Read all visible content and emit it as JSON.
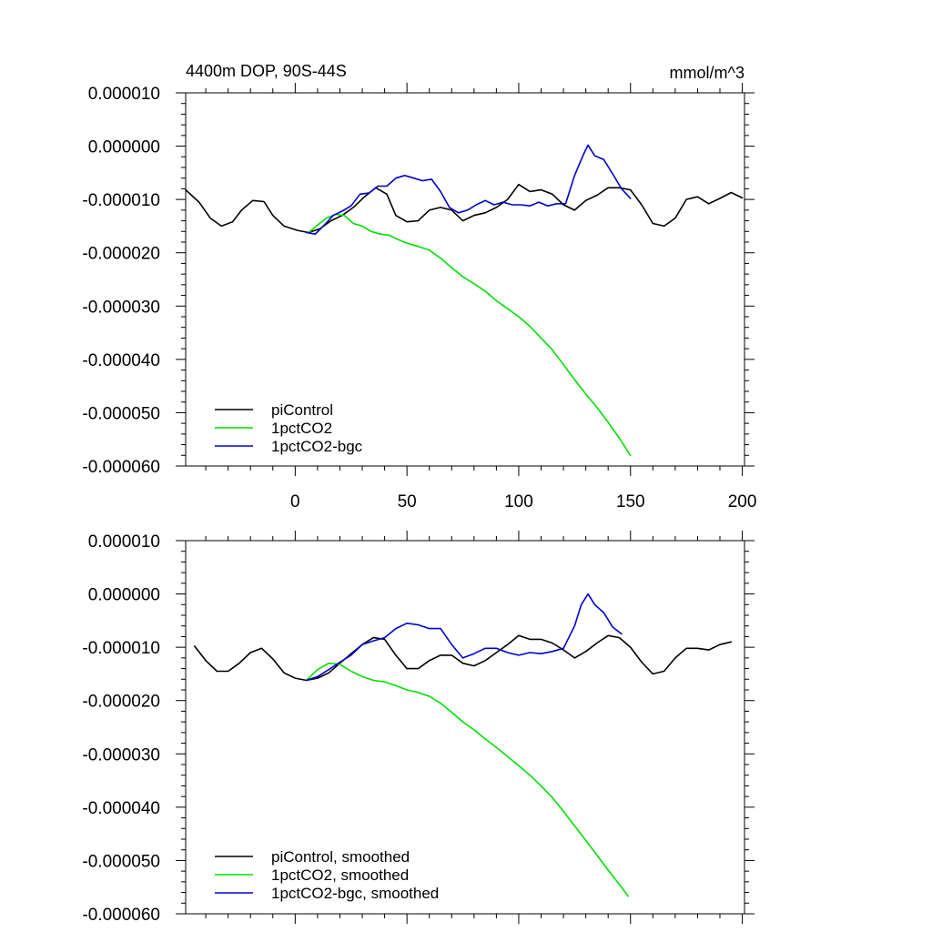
{
  "chart_data": [
    {
      "type": "line",
      "title": "4400m DOP, 90S-44S",
      "units_label": "mmol/m^3",
      "xlim": [
        -49,
        201
      ],
      "ylim": [
        -6e-05,
        1e-05
      ],
      "x_ticks": [
        0,
        50,
        100,
        150,
        200
      ],
      "x_tick_labels": [
        "0",
        "50",
        "100",
        "150",
        "200"
      ],
      "y_ticks": [
        1e-05,
        0,
        -1e-05,
        -2e-05,
        -3e-05,
        -4e-05,
        -5e-05,
        -6e-05
      ],
      "y_tick_labels": [
        "0.000010",
        "0.000000",
        "-0.000010",
        "-0.000020",
        "-0.000030",
        "-0.000040",
        "-0.000050",
        "-0.000060"
      ],
      "grid": false,
      "legend_position": "bottom-left",
      "series": [
        {
          "name": "piControl",
          "color": "#000000",
          "x": [
            -49,
            -43,
            -38,
            -33,
            -28,
            -24,
            -19,
            -14,
            -10,
            -5,
            1,
            6,
            11,
            16,
            21,
            26,
            31,
            36,
            41,
            45,
            50,
            55,
            60,
            65,
            70,
            75,
            80,
            85,
            90,
            95,
            100,
            105,
            110,
            115,
            120,
            125,
            130,
            135,
            140,
            145,
            150,
            155,
            160,
            165,
            170,
            175,
            180,
            185,
            190,
            195,
            200
          ],
          "y": [
            -8.2e-06,
            -1.05e-05,
            -1.35e-05,
            -1.5e-05,
            -1.42e-05,
            -1.2e-05,
            -1.02e-05,
            -1.04e-05,
            -1.3e-05,
            -1.5e-05,
            -1.58e-05,
            -1.62e-05,
            -1.55e-05,
            -1.4e-05,
            -1.3e-05,
            -1.15e-05,
            -9.5e-06,
            -7.8e-06,
            -9e-06,
            -1.3e-05,
            -1.42e-05,
            -1.4e-05,
            -1.2e-05,
            -1.15e-05,
            -1.2e-05,
            -1.4e-05,
            -1.3e-05,
            -1.25e-05,
            -1.15e-05,
            -1e-05,
            -7.2e-06,
            -8.5e-06,
            -8.2e-06,
            -9e-06,
            -1.1e-05,
            -1.2e-05,
            -1.02e-05,
            -9.2e-06,
            -7.8e-06,
            -7.8e-06,
            -8.2e-06,
            -1.1e-05,
            -1.45e-05,
            -1.5e-05,
            -1.35e-05,
            -1e-05,
            -9.5e-06,
            -1.08e-05,
            -9.8e-06,
            -8.7e-06,
            -9.7e-06
          ]
        },
        {
          "name": "1pctCO2",
          "color": "#00e000",
          "x": [
            6,
            10,
            14,
            18,
            22,
            26,
            30,
            34,
            38,
            42,
            46,
            50,
            55,
            60,
            65,
            70,
            75,
            80,
            85,
            90,
            95,
            100,
            105,
            110,
            115,
            120,
            125,
            130,
            135,
            140,
            145,
            150
          ],
          "y": [
            -1.62e-05,
            -1.48e-05,
            -1.35e-05,
            -1.28e-05,
            -1.3e-05,
            -1.45e-05,
            -1.5e-05,
            -1.6e-05,
            -1.65e-05,
            -1.67e-05,
            -1.75e-05,
            -1.82e-05,
            -1.88e-05,
            -1.95e-05,
            -2.1e-05,
            -2.28e-05,
            -2.45e-05,
            -2.58e-05,
            -2.72e-05,
            -2.9e-05,
            -3.05e-05,
            -3.2e-05,
            -3.38e-05,
            -3.6e-05,
            -3.82e-05,
            -4.1e-05,
            -4.38e-05,
            -4.65e-05,
            -4.9e-05,
            -5.18e-05,
            -5.48e-05,
            -5.8e-05
          ]
        },
        {
          "name": "1pctCO2-bgc",
          "color": "#0000cc",
          "x": [
            5,
            9,
            13,
            17,
            21,
            25,
            29,
            33,
            37,
            41,
            45,
            49,
            53,
            57,
            61,
            65,
            69,
            73,
            77,
            81,
            85,
            89,
            93,
            97,
            101,
            105,
            109,
            113,
            117,
            121,
            125,
            129,
            131,
            134,
            138,
            142,
            146,
            150
          ],
          "y": [
            -1.62e-05,
            -1.65e-05,
            -1.48e-05,
            -1.3e-05,
            -1.22e-05,
            -1.12e-05,
            -9e-06,
            -8.8e-06,
            -7.5e-06,
            -7.5e-06,
            -6e-06,
            -5.5e-06,
            -6e-06,
            -6.5e-06,
            -6.2e-06,
            -8.5e-06,
            -1.15e-05,
            -1.25e-05,
            -1.2e-05,
            -1.1e-05,
            -1.02e-05,
            -1.1e-05,
            -1.05e-05,
            -1.1e-05,
            -1.1e-05,
            -1.12e-05,
            -1.05e-05,
            -1.12e-05,
            -1.08e-05,
            -1.08e-05,
            -5.5e-06,
            -1.5e-06,
            2e-07,
            -1.8e-06,
            -2.5e-06,
            -5.2e-06,
            -8e-06,
            -9.8e-06
          ]
        }
      ]
    },
    {
      "type": "line",
      "title": "",
      "xlim": [
        -49,
        201
      ],
      "ylim": [
        -6e-05,
        1e-05
      ],
      "x_ticks": [
        0,
        50,
        100,
        150,
        200
      ],
      "y_ticks": [
        1e-05,
        0,
        -1e-05,
        -2e-05,
        -3e-05,
        -4e-05,
        -5e-05,
        -6e-05
      ],
      "y_tick_labels": [
        "0.000010",
        "0.000000",
        "-0.000010",
        "-0.000020",
        "-0.000030",
        "-0.000040",
        "-0.000050",
        "-0.000060"
      ],
      "grid": false,
      "legend_position": "bottom-left",
      "series": [
        {
          "name": "piControl, smoothed",
          "color": "#000000",
          "x": [
            -45,
            -40,
            -35,
            -30,
            -25,
            -20,
            -15,
            -10,
            -5,
            0,
            5,
            10,
            15,
            20,
            25,
            30,
            35,
            40,
            45,
            50,
            55,
            60,
            65,
            70,
            75,
            80,
            85,
            90,
            95,
            100,
            105,
            110,
            115,
            120,
            125,
            130,
            135,
            140,
            145,
            150,
            155,
            160,
            165,
            170,
            175,
            180,
            185,
            190,
            195
          ],
          "y": [
            -9.8e-06,
            -1.25e-05,
            -1.45e-05,
            -1.45e-05,
            -1.3e-05,
            -1.1e-05,
            -1.02e-05,
            -1.22e-05,
            -1.48e-05,
            -1.58e-05,
            -1.62e-05,
            -1.58e-05,
            -1.48e-05,
            -1.3e-05,
            -1.12e-05,
            -9.5e-06,
            -8.2e-06,
            -8.5e-06,
            -1.15e-05,
            -1.4e-05,
            -1.4e-05,
            -1.25e-05,
            -1.15e-05,
            -1.15e-05,
            -1.3e-05,
            -1.35e-05,
            -1.25e-05,
            -1.1e-05,
            -9.5e-06,
            -7.8e-06,
            -8.5e-06,
            -8.5e-06,
            -9.2e-06,
            -1.05e-05,
            -1.2e-05,
            -1.08e-05,
            -9.2e-06,
            -7.8e-06,
            -8.2e-06,
            -1e-05,
            -1.28e-05,
            -1.5e-05,
            -1.45e-05,
            -1.2e-05,
            -1.02e-05,
            -1.02e-05,
            -1.05e-05,
            -9.5e-06,
            -9e-06
          ]
        },
        {
          "name": "1pctCO2, smoothed",
          "color": "#00e000",
          "x": [
            5,
            10,
            15,
            20,
            25,
            30,
            35,
            40,
            45,
            50,
            55,
            60,
            65,
            70,
            75,
            80,
            85,
            90,
            95,
            100,
            105,
            110,
            115,
            120,
            125,
            130,
            135,
            140,
            145,
            149
          ],
          "y": [
            -1.62e-05,
            -1.42e-05,
            -1.3e-05,
            -1.32e-05,
            -1.45e-05,
            -1.55e-05,
            -1.62e-05,
            -1.65e-05,
            -1.72e-05,
            -1.8e-05,
            -1.85e-05,
            -1.92e-05,
            -2.05e-05,
            -2.22e-05,
            -2.4e-05,
            -2.55e-05,
            -2.72e-05,
            -2.88e-05,
            -3.05e-05,
            -3.22e-05,
            -3.4e-05,
            -3.6e-05,
            -3.82e-05,
            -4.08e-05,
            -4.35e-05,
            -4.62e-05,
            -4.9e-05,
            -5.18e-05,
            -5.45e-05,
            -5.67e-05
          ]
        },
        {
          "name": "1pctCO2-bgc, smoothed",
          "color": "#0000cc",
          "x": [
            5,
            10,
            15,
            20,
            25,
            30,
            35,
            40,
            45,
            50,
            55,
            60,
            65,
            70,
            75,
            80,
            85,
            90,
            95,
            100,
            105,
            110,
            115,
            120,
            125,
            128,
            131,
            134,
            138,
            142,
            146
          ],
          "y": [
            -1.62e-05,
            -1.55e-05,
            -1.42e-05,
            -1.28e-05,
            -1.15e-05,
            -9.5e-06,
            -8.8e-06,
            -8.2e-06,
            -6.5e-06,
            -5.5e-06,
            -5.8e-06,
            -6.5e-06,
            -6.5e-06,
            -9.5e-06,
            -1.2e-05,
            -1.12e-05,
            -1.02e-05,
            -1.02e-05,
            -1.1e-05,
            -1.15e-05,
            -1.1e-05,
            -1.12e-05,
            -1.08e-05,
            -1.02e-05,
            -6e-06,
            -2e-06,
            0.0,
            -2e-06,
            -3.5e-06,
            -6.2e-06,
            -7.5e-06
          ]
        }
      ]
    }
  ]
}
